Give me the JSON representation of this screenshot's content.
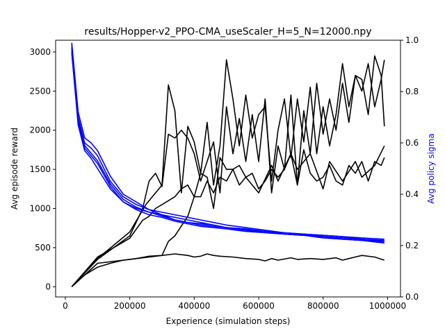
{
  "chart_data": {
    "type": "line",
    "title": "results/Hopper-v2_PPO-CMA_useScaler_H=5_N=12000.npy",
    "xlabel": "Experience (simulation steps)",
    "ylabel_left": "Avg episode reward",
    "ylabel_right": "Avg policy sigma",
    "xlim": [
      -30000,
      1040000
    ],
    "ylim_left": [
      -130,
      3150
    ],
    "ylim_right": [
      0.0,
      1.0
    ],
    "x_ticks": [
      0,
      200000,
      400000,
      600000,
      800000,
      1000000
    ],
    "x_tick_labels": [
      "0",
      "200000",
      "400000",
      "600000",
      "800000",
      "1000000"
    ],
    "y_left_ticks": [
      0,
      500,
      1000,
      1500,
      2000,
      2500,
      3000
    ],
    "y_left_tick_labels": [
      "0",
      "500",
      "1000",
      "1500",
      "2000",
      "2500",
      "3000"
    ],
    "y_right_ticks": [
      0.0,
      0.2,
      0.4,
      0.6,
      0.8,
      1.0
    ],
    "y_right_tick_labels": [
      "0.0",
      "0.2",
      "0.4",
      "0.6",
      "0.8",
      "1.0"
    ],
    "colors": {
      "reward": "#000000",
      "sigma": "#0000ff",
      "right_axis_label": "#0000ff"
    },
    "reward_series": [
      {
        "x": [
          20000,
          100000,
          200000,
          300000,
          320000,
          340000,
          380000,
          400000,
          420000,
          440000,
          460000,
          480000,
          500000,
          520000,
          540000,
          560000,
          600000,
          640000,
          660000,
          700000,
          720000,
          760000,
          800000,
          820000,
          860000,
          900000,
          920000,
          960000,
          990000
        ],
        "y": [
          0,
          300,
          350,
          400,
          580,
          650,
          900,
          1150,
          1450,
          1400,
          1000,
          1650,
          1500,
          1500,
          1550,
          1400,
          1200,
          1550,
          1350,
          1700,
          1500,
          1700,
          1250,
          1600,
          1350,
          1600,
          1400,
          1550,
          1800
        ]
      },
      {
        "x": [
          20000,
          100000,
          200000,
          240000,
          260000,
          280000,
          300000,
          320000,
          340000,
          360000,
          380000,
          400000,
          420000,
          440000,
          460000,
          480000,
          500000,
          520000,
          540000,
          560000,
          580000,
          600000,
          620000,
          640000,
          660000,
          680000,
          700000,
          720000,
          740000,
          760000,
          780000,
          800000,
          820000,
          840000,
          860000,
          880000,
          900000,
          920000,
          940000,
          960000,
          980000,
          990000
        ],
        "y": [
          0,
          350,
          650,
          1000,
          1350,
          1450,
          1280,
          1950,
          1900,
          2000,
          1900,
          1700,
          1350,
          1600,
          1850,
          1200,
          2300,
          1700,
          2150,
          1600,
          2200,
          1600,
          2400,
          1200,
          1800,
          1500,
          2450,
          1300,
          2250,
          1700,
          2600,
          1950,
          2400,
          2000,
          2600,
          2100,
          2700,
          2500,
          2850,
          2300,
          2650,
          2900
        ]
      },
      {
        "x": [
          20000,
          100000,
          200000,
          250000,
          280000,
          300000,
          320000,
          340000,
          360000,
          380000,
          400000,
          420000,
          440000,
          460000,
          480000,
          500000,
          520000,
          540000,
          560000,
          580000,
          600000,
          620000,
          640000,
          660000,
          680000,
          700000,
          720000,
          740000,
          760000,
          780000,
          800000,
          820000,
          840000,
          860000,
          880000,
          900000,
          920000,
          940000,
          960000,
          980000,
          990000
        ],
        "y": [
          0,
          360,
          700,
          1050,
          1200,
          1300,
          2580,
          2250,
          1200,
          2050,
          1850,
          1450,
          2100,
          1300,
          1800,
          2900,
          2400,
          1800,
          2450,
          1900,
          2200,
          2300,
          1350,
          2000,
          2400,
          1650,
          2400,
          1850,
          2550,
          1700,
          2300,
          1800,
          2200,
          2850,
          2300,
          2700,
          2650,
          2200,
          2950,
          2700,
          2050
        ]
      },
      {
        "x": [
          20000,
          100000,
          200000,
          240000,
          260000,
          280000,
          300000,
          320000,
          340000,
          360000,
          380000,
          400000,
          420000,
          440000,
          460000,
          480000,
          500000,
          520000,
          540000,
          560000,
          580000,
          600000,
          620000,
          640000,
          660000,
          680000,
          700000,
          720000,
          740000,
          760000,
          780000,
          800000,
          820000,
          840000,
          860000,
          880000,
          900000,
          920000,
          940000,
          960000,
          980000,
          990000
        ],
        "y": [
          0,
          380,
          620,
          850,
          900,
          1000,
          1050,
          1100,
          1150,
          1250,
          1300,
          1150,
          1150,
          1350,
          1200,
          1400,
          1350,
          1500,
          1300,
          1400,
          1450,
          1250,
          1350,
          1500,
          1400,
          1500,
          1700,
          1300,
          1750,
          1450,
          1350,
          1400,
          1550,
          1350,
          1300,
          1550,
          1450,
          1600,
          1350,
          1600,
          1550,
          1650
        ]
      },
      {
        "x": [
          20000,
          60000,
          100000,
          140000,
          180000,
          220000,
          260000,
          300000,
          340000,
          380000,
          400000,
          420000,
          440000,
          460000,
          480000,
          520000,
          560000,
          600000,
          620000,
          640000,
          660000,
          700000,
          720000,
          760000,
          800000,
          840000,
          860000,
          880000,
          920000,
          960000,
          990000
        ],
        "y": [
          0,
          150,
          250,
          300,
          340,
          360,
          390,
          400,
          420,
          400,
          380,
          390,
          420,
          400,
          390,
          380,
          360,
          350,
          330,
          360,
          340,
          370,
          350,
          360,
          350,
          370,
          340,
          360,
          400,
          380,
          340
        ]
      }
    ],
    "sigma_series": [
      {
        "x": [
          20000,
          40000,
          60000,
          80000,
          100000,
          140000,
          180000,
          220000,
          260000,
          300000,
          340000,
          380000,
          420000,
          460000,
          500000,
          560000,
          620000,
          680000,
          740000,
          800000,
          860000,
          920000,
          990000
        ],
        "y": [
          0.99,
          0.72,
          0.62,
          0.6,
          0.57,
          0.47,
          0.4,
          0.37,
          0.34,
          0.33,
          0.32,
          0.31,
          0.3,
          0.29,
          0.28,
          0.27,
          0.26,
          0.25,
          0.245,
          0.24,
          0.235,
          0.23,
          0.225
        ]
      },
      {
        "x": [
          20000,
          40000,
          60000,
          80000,
          100000,
          140000,
          180000,
          220000,
          260000,
          300000,
          340000,
          380000,
          420000,
          460000,
          500000,
          560000,
          620000,
          680000,
          740000,
          800000,
          860000,
          920000,
          990000
        ],
        "y": [
          0.98,
          0.7,
          0.6,
          0.58,
          0.55,
          0.45,
          0.39,
          0.36,
          0.34,
          0.32,
          0.31,
          0.3,
          0.29,
          0.28,
          0.27,
          0.265,
          0.255,
          0.25,
          0.245,
          0.24,
          0.235,
          0.225,
          0.215
        ]
      },
      {
        "x": [
          20000,
          40000,
          60000,
          80000,
          100000,
          140000,
          180000,
          220000,
          260000,
          300000,
          340000,
          380000,
          420000,
          460000,
          500000,
          560000,
          620000,
          680000,
          740000,
          800000,
          860000,
          920000,
          990000
        ],
        "y": [
          0.97,
          0.69,
          0.59,
          0.56,
          0.53,
          0.44,
          0.38,
          0.35,
          0.33,
          0.32,
          0.3,
          0.29,
          0.285,
          0.28,
          0.27,
          0.26,
          0.255,
          0.245,
          0.24,
          0.235,
          0.23,
          0.225,
          0.22
        ]
      },
      {
        "x": [
          20000,
          40000,
          60000,
          80000,
          100000,
          140000,
          180000,
          220000,
          260000,
          300000,
          340000,
          380000,
          420000,
          460000,
          500000,
          560000,
          620000,
          680000,
          740000,
          800000,
          860000,
          920000,
          990000
        ],
        "y": [
          0.96,
          0.68,
          0.58,
          0.55,
          0.52,
          0.43,
          0.37,
          0.345,
          0.33,
          0.315,
          0.3,
          0.29,
          0.28,
          0.275,
          0.27,
          0.26,
          0.25,
          0.245,
          0.24,
          0.235,
          0.225,
          0.22,
          0.21
        ]
      },
      {
        "x": [
          20000,
          40000,
          60000,
          80000,
          100000,
          140000,
          180000,
          220000,
          260000,
          300000,
          340000,
          380000,
          420000,
          460000,
          500000,
          560000,
          620000,
          680000,
          740000,
          800000,
          860000,
          920000,
          990000
        ],
        "y": [
          0.95,
          0.67,
          0.57,
          0.54,
          0.5,
          0.42,
          0.37,
          0.34,
          0.32,
          0.31,
          0.295,
          0.285,
          0.275,
          0.27,
          0.265,
          0.255,
          0.25,
          0.245,
          0.24,
          0.23,
          0.225,
          0.22,
          0.215
        ]
      }
    ]
  }
}
